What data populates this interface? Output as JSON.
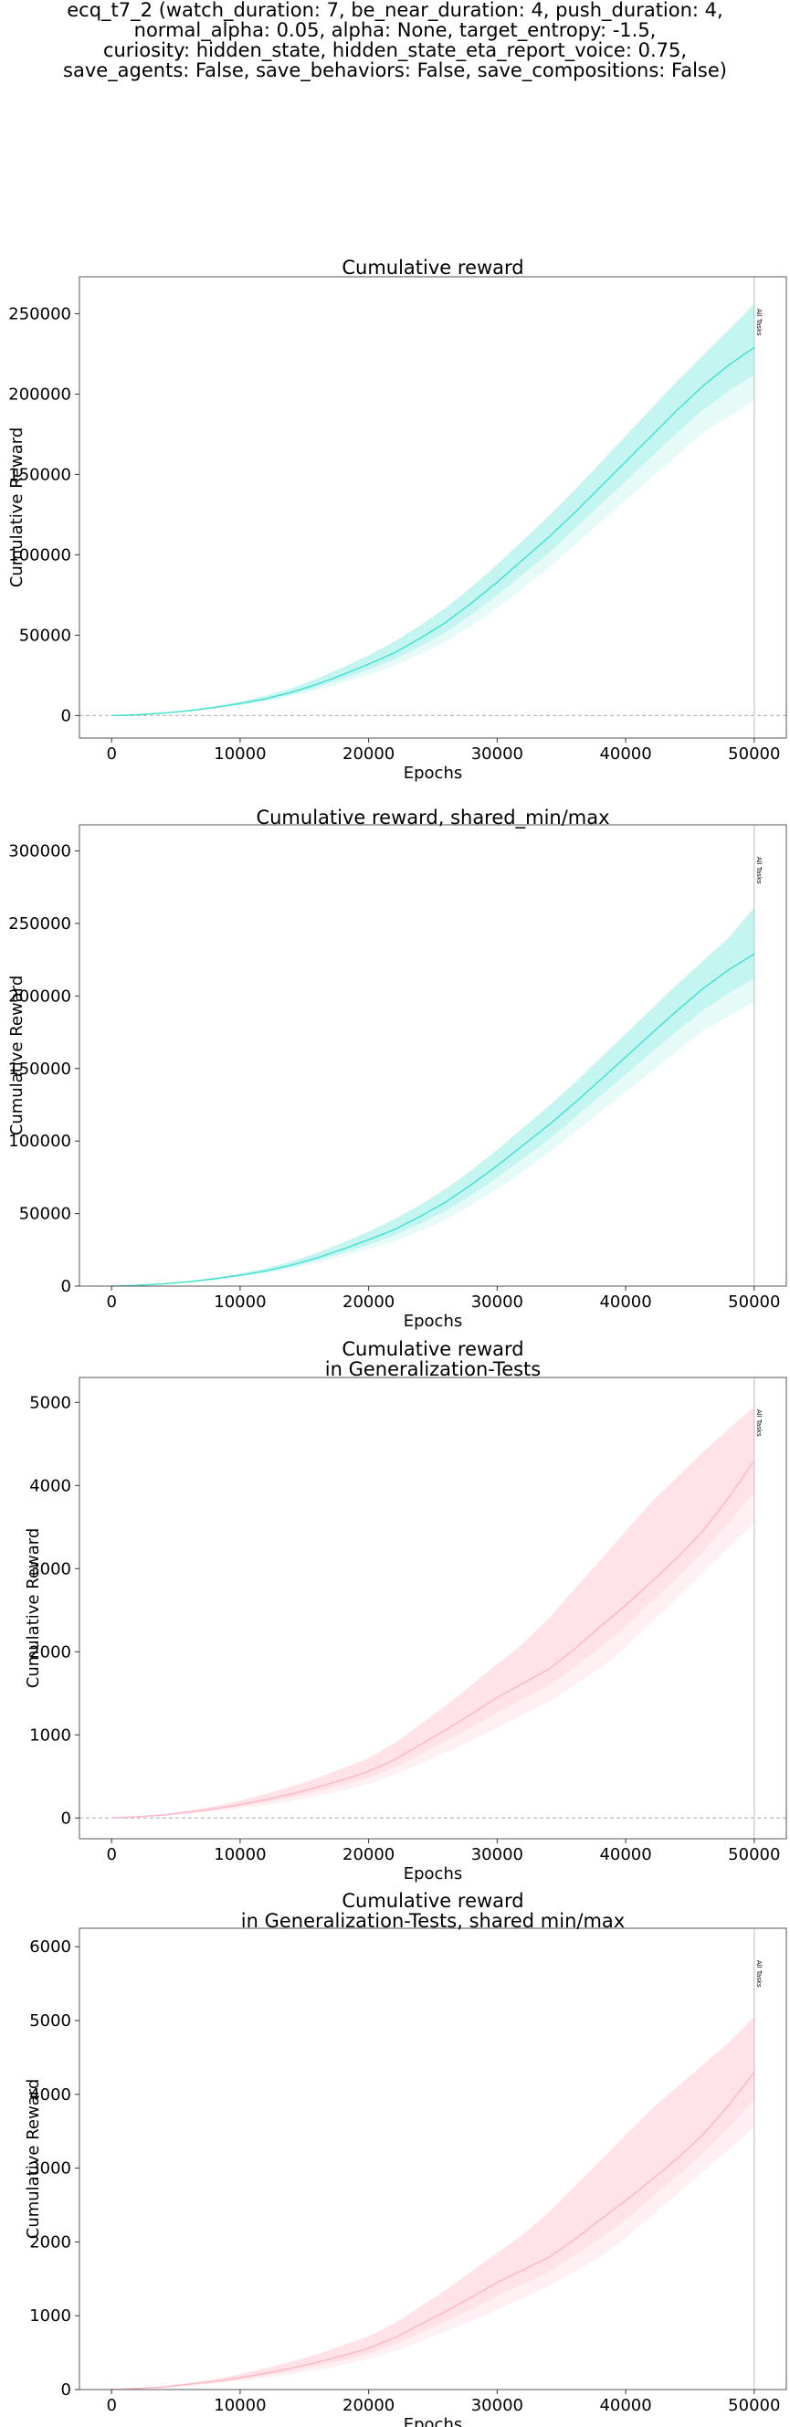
{
  "figure": {
    "suptitle_lines": [
      "ecq_t7_2 (watch_duration: 7, be_near_duration: 4, push_duration: 4,",
      "normal_alpha: 0.05, alpha: None, target_entropy: -1.5,",
      "curiosity: hidden_state, hidden_state_eta_report_voice: 0.75,",
      "save_agents: False, save_behaviors: False, save_compositions: False)"
    ]
  },
  "chart_data": [
    {
      "type": "line",
      "title_lines": [
        "Cumulative reward"
      ],
      "xlabel": "Epochs",
      "ylabel": "Cumulative Reward",
      "xlim": [
        -2500,
        52500
      ],
      "ylim": [
        -14000,
        273000
      ],
      "xticks": [
        0,
        10000,
        20000,
        30000,
        40000,
        50000
      ],
      "yticks": [
        0,
        50000,
        100000,
        150000,
        200000,
        250000
      ],
      "zero_line": true,
      "vline": {
        "x": 50000,
        "label": "All Tasks"
      },
      "color": "#40e0d0",
      "band_color": "#bdf3ee",
      "inner_band_color": "#e6faf8",
      "series": [
        {
          "x": [
            0,
            2000,
            4000,
            6000,
            8000,
            10000,
            12000,
            14000,
            16000,
            18000,
            20000,
            22000,
            24000,
            26000,
            28000,
            30000,
            32000,
            34000,
            36000,
            38000,
            40000,
            42000,
            44000,
            46000,
            48000,
            50000
          ],
          "y": [
            0,
            500,
            1500,
            3000,
            5000,
            7500,
            10500,
            14500,
            19500,
            25500,
            32000,
            39000,
            48000,
            58000,
            70000,
            83000,
            97000,
            111000,
            126000,
            142000,
            158000,
            174000,
            190000,
            205000,
            218000,
            229000
          ],
          "upper": [
            0,
            600,
            1800,
            3500,
            5800,
            8700,
            12300,
            17000,
            23000,
            30000,
            37500,
            46000,
            56000,
            67000,
            80000,
            94000,
            109000,
            124000,
            140000,
            157000,
            174000,
            191000,
            208000,
            224000,
            240000,
            256000
          ],
          "lower": [
            0,
            400,
            1200,
            2500,
            4200,
            6300,
            8800,
            12000,
            16000,
            20500,
            25500,
            31000,
            38000,
            46000,
            56000,
            67000,
            79000,
            92000,
            106000,
            120000,
            134000,
            148000,
            162000,
            176000,
            186000,
            196000
          ],
          "inner_lower": [
            0,
            450,
            1350,
            2750,
            4600,
            6900,
            9600,
            13200,
            17700,
            23000,
            28700,
            35000,
            43000,
            52000,
            63000,
            75000,
            88000,
            101000,
            116000,
            131000,
            146000,
            161000,
            176000,
            190000,
            202000,
            212000
          ]
        }
      ]
    },
    {
      "type": "line",
      "title_lines": [
        "Cumulative reward, shared_min/max"
      ],
      "xlabel": "Epochs",
      "ylabel": "Cumulative Reward",
      "xlim": [
        -2500,
        52500
      ],
      "ylim": [
        0,
        318000
      ],
      "xticks": [
        0,
        10000,
        20000,
        30000,
        40000,
        50000
      ],
      "yticks": [
        0,
        50000,
        100000,
        150000,
        200000,
        250000,
        300000
      ],
      "zero_line": false,
      "vline": {
        "x": 50000,
        "label": "All Tasks"
      },
      "color": "#40e0d0",
      "band_color": "#bdf3ee",
      "inner_band_color": "#e6faf8",
      "series": [
        {
          "x": [
            0,
            2000,
            4000,
            6000,
            8000,
            10000,
            12000,
            14000,
            16000,
            18000,
            20000,
            22000,
            24000,
            26000,
            28000,
            30000,
            32000,
            34000,
            36000,
            38000,
            40000,
            42000,
            44000,
            46000,
            48000,
            50000
          ],
          "y": [
            0,
            500,
            1500,
            3000,
            5000,
            7500,
            10500,
            14500,
            19500,
            25500,
            32000,
            39000,
            48000,
            58000,
            70000,
            83000,
            97000,
            111000,
            126000,
            142000,
            158000,
            174000,
            190000,
            205000,
            218000,
            229000
          ],
          "upper": [
            0,
            600,
            1800,
            3500,
            5800,
            8700,
            12300,
            17000,
            23000,
            30000,
            37500,
            46000,
            56000,
            67000,
            80000,
            94000,
            109000,
            124000,
            140000,
            157000,
            174000,
            191000,
            208000,
            224000,
            240000,
            261000
          ],
          "lower": [
            0,
            400,
            1200,
            2500,
            4200,
            6300,
            8800,
            12000,
            16000,
            20500,
            25500,
            31000,
            38000,
            46000,
            56000,
            67000,
            79000,
            92000,
            106000,
            120000,
            134000,
            148000,
            162000,
            176000,
            186000,
            196000
          ],
          "inner_lower": [
            0,
            450,
            1350,
            2750,
            4600,
            6900,
            9600,
            13200,
            17700,
            23000,
            28700,
            35000,
            43000,
            52000,
            63000,
            75000,
            88000,
            101000,
            116000,
            131000,
            146000,
            161000,
            176000,
            190000,
            202000,
            212000
          ]
        }
      ]
    },
    {
      "type": "line",
      "title_lines": [
        "Cumulative reward",
        "in Generalization-Tests"
      ],
      "xlabel": "Epochs",
      "ylabel": "Cumulative Reward",
      "xlim": [
        -2500,
        52500
      ],
      "ylim": [
        -250,
        5300
      ],
      "xticks": [
        0,
        10000,
        20000,
        30000,
        40000,
        50000
      ],
      "yticks": [
        0,
        1000,
        2000,
        3000,
        4000,
        5000
      ],
      "zero_line": true,
      "vline": {
        "x": 50000,
        "label": "All Tasks"
      },
      "color": "#ffb6c1",
      "band_color": "#ffe0e6",
      "inner_band_color": "#fff0f3",
      "series": [
        {
          "x": [
            0,
            2000,
            4000,
            6000,
            8000,
            10000,
            12000,
            14000,
            16000,
            18000,
            20000,
            22000,
            24000,
            26000,
            28000,
            30000,
            32000,
            34000,
            36000,
            38000,
            40000,
            42000,
            44000,
            46000,
            48000,
            50000
          ],
          "y": [
            0,
            15,
            35,
            70,
            110,
            160,
            220,
            290,
            370,
            460,
            560,
            700,
            880,
            1060,
            1250,
            1450,
            1620,
            1790,
            2030,
            2300,
            2560,
            2840,
            3130,
            3450,
            3850,
            4300
          ],
          "upper": [
            0,
            20,
            45,
            90,
            140,
            210,
            290,
            380,
            480,
            600,
            720,
            900,
            1120,
            1350,
            1600,
            1850,
            2100,
            2400,
            2750,
            3100,
            3450,
            3800,
            4100,
            4400,
            4680,
            4950
          ],
          "lower": [
            0,
            10,
            25,
            50,
            80,
            115,
            155,
            205,
            265,
            330,
            410,
            520,
            650,
            790,
            930,
            1080,
            1240,
            1400,
            1600,
            1800,
            2050,
            2350,
            2650,
            2950,
            3250,
            3550
          ],
          "inner_lower": [
            0,
            12,
            30,
            60,
            95,
            138,
            188,
            248,
            318,
            395,
            485,
            610,
            765,
            925,
            1090,
            1265,
            1430,
            1595,
            1815,
            2050,
            2300,
            2600,
            2890,
            3200,
            3550,
            3930
          ]
        }
      ]
    },
    {
      "type": "line",
      "title_lines": [
        "Cumulative reward",
        "in Generalization-Tests, shared min/max"
      ],
      "xlabel": "Epochs",
      "ylabel": "Cumulative Reward",
      "xlim": [
        -2500,
        52500
      ],
      "ylim": [
        0,
        6250
      ],
      "xticks": [
        0,
        10000,
        20000,
        30000,
        40000,
        50000
      ],
      "yticks": [
        0,
        1000,
        2000,
        3000,
        4000,
        5000,
        6000
      ],
      "zero_line": false,
      "vline": {
        "x": 50000,
        "label": "All Tasks"
      },
      "color": "#ffb6c1",
      "band_color": "#ffe0e6",
      "inner_band_color": "#fff0f3",
      "series": [
        {
          "x": [
            0,
            2000,
            4000,
            6000,
            8000,
            10000,
            12000,
            14000,
            16000,
            18000,
            20000,
            22000,
            24000,
            26000,
            28000,
            30000,
            32000,
            34000,
            36000,
            38000,
            40000,
            42000,
            44000,
            46000,
            48000,
            50000
          ],
          "y": [
            0,
            15,
            35,
            70,
            110,
            160,
            220,
            290,
            370,
            460,
            560,
            700,
            880,
            1060,
            1250,
            1450,
            1620,
            1790,
            2030,
            2300,
            2560,
            2840,
            3130,
            3450,
            3850,
            4300
          ],
          "upper": [
            0,
            20,
            45,
            90,
            140,
            210,
            290,
            380,
            480,
            600,
            720,
            900,
            1120,
            1350,
            1600,
            1850,
            2100,
            2400,
            2750,
            3100,
            3450,
            3800,
            4100,
            4400,
            4700,
            5050
          ],
          "lower": [
            0,
            10,
            25,
            50,
            80,
            115,
            155,
            205,
            265,
            330,
            410,
            520,
            650,
            790,
            930,
            1080,
            1240,
            1400,
            1600,
            1800,
            2050,
            2350,
            2650,
            2950,
            3250,
            3550
          ],
          "inner_lower": [
            0,
            12,
            30,
            60,
            95,
            138,
            188,
            248,
            318,
            395,
            485,
            610,
            765,
            925,
            1090,
            1265,
            1430,
            1595,
            1815,
            2050,
            2300,
            2600,
            2890,
            3200,
            3550,
            3930
          ]
        }
      ]
    }
  ]
}
